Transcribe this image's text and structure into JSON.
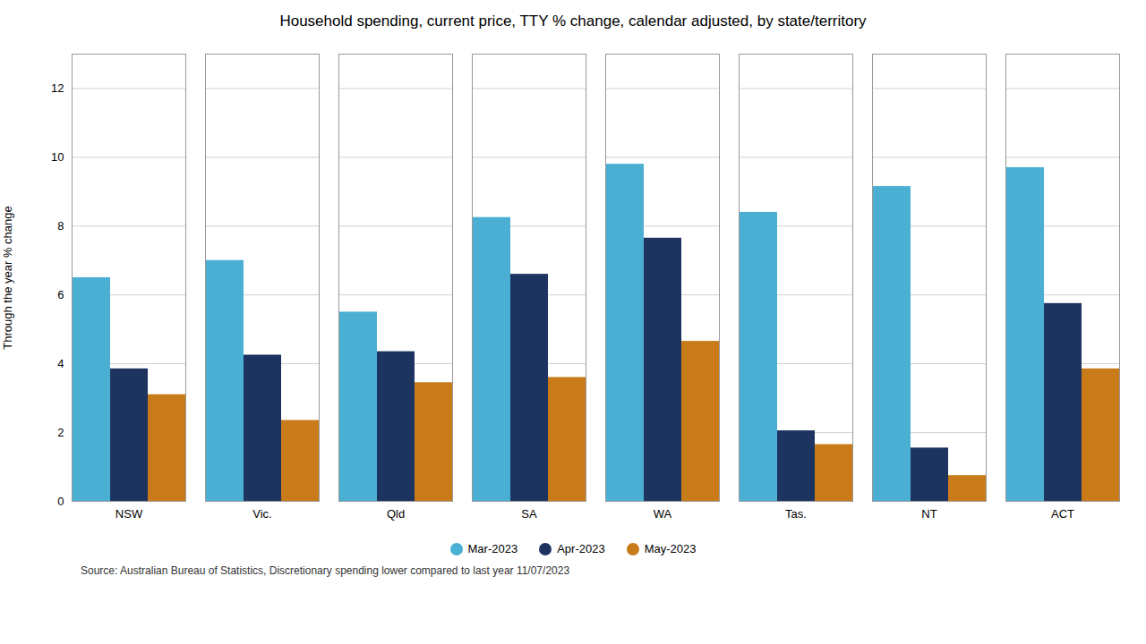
{
  "chart_data": {
    "type": "bar",
    "title": "Household spending, current price, TTY % change, calendar adjusted, by state/territory",
    "ylabel": "Through the year % change",
    "source": "Source: Australian Bureau of Statistics, Discretionary spending lower compared to last year 11/07/2023",
    "categories": [
      "NSW",
      "Vic.",
      "Qld",
      "SA",
      "WA",
      "Tas.",
      "NT",
      "ACT"
    ],
    "series": [
      {
        "name": "Mar-2023",
        "color": "#4BAFD4",
        "values": [
          6.5,
          7.0,
          5.5,
          8.25,
          9.8,
          8.4,
          9.15,
          9.7
        ]
      },
      {
        "name": "Apr-2023",
        "color": "#1D3461",
        "values": [
          3.85,
          4.25,
          4.35,
          6.6,
          7.65,
          2.05,
          1.55,
          5.75
        ]
      },
      {
        "name": "May-2023",
        "color": "#C97B1A",
        "values": [
          3.1,
          2.35,
          3.45,
          3.6,
          4.65,
          1.65,
          0.75,
          3.85
        ]
      }
    ],
    "ylim": [
      0,
      13
    ],
    "yticks": [
      0,
      2,
      4,
      6,
      8,
      10,
      12
    ],
    "grid": true,
    "legend": "bottom"
  }
}
